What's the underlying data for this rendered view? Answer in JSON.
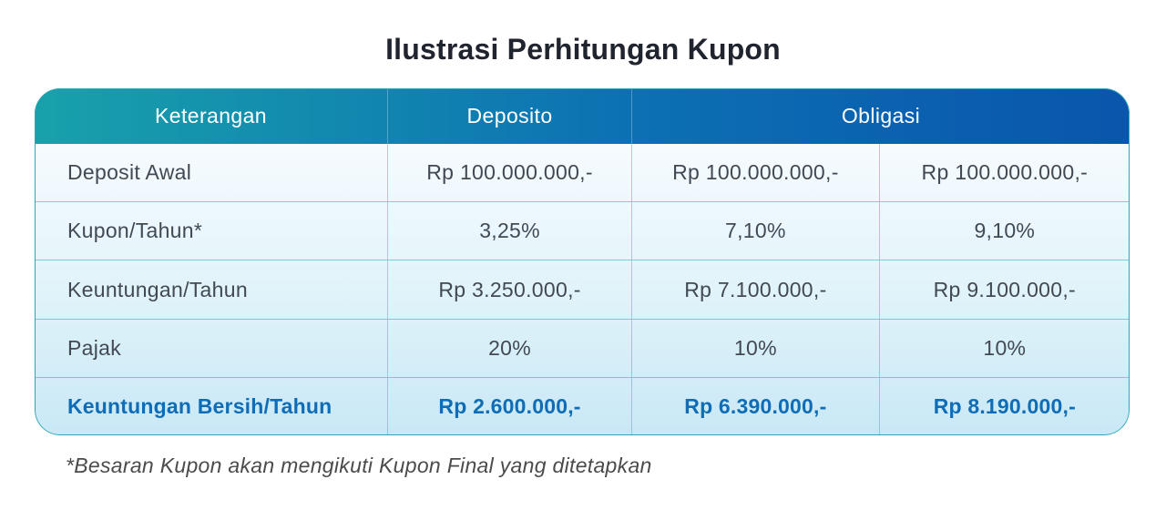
{
  "chart_data": {
    "type": "table",
    "title": "Ilustrasi Perhitungan Kupon",
    "header": {
      "keterangan": "Keterangan",
      "deposito": "Deposito",
      "obligasi": "Obligasi",
      "obligasi_colspan": 2
    },
    "rows": [
      {
        "label": "Deposit Awal",
        "values": [
          "Rp 100.000.000,-",
          "Rp 100.000.000,-",
          "Rp 100.000.000,-"
        ]
      },
      {
        "label": "Kupon/Tahun*",
        "values": [
          "3,25%",
          "7,10%",
          "9,10%"
        ]
      },
      {
        "label": "Keuntungan/Tahun",
        "values": [
          "Rp 3.250.000,-",
          "Rp 7.100.000,-",
          "Rp 9.100.000,-"
        ]
      },
      {
        "label": "Pajak",
        "values": [
          "20%",
          "10%",
          "10%"
        ]
      },
      {
        "label": "Keuntungan Bersih/Tahun",
        "values": [
          "Rp 2.600.000,-",
          "Rp 6.390.000,-",
          "Rp 8.190.000,-"
        ],
        "highlight": true
      }
    ],
    "footnote": "*Besaran Kupon akan mengikuti Kupon Final yang ditetapkan"
  },
  "colors": {
    "header_gradient_left": "#18a1ab",
    "header_gradient_mid": "#0c70b3",
    "header_gradient_right": "#0a55ad",
    "header_text": "#ffffff",
    "body_gradient_top": "#f6fbfe",
    "body_gradient_bottom": "#c9e8f6",
    "table_border": "#2ca7b5",
    "body_text": "#424953",
    "highlight_text": "#0e6db6",
    "title_text": "#20242e",
    "footnote_text": "#4b4b4d"
  }
}
